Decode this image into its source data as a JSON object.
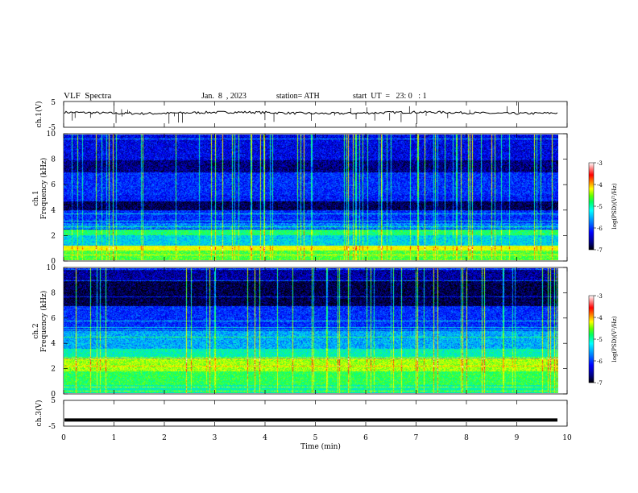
{
  "header": {
    "title": "VLF  Spectra",
    "date": "Jan.  8  , 2023",
    "station": "station= ATH",
    "start": "start  UT  =   23: 0   : 1"
  },
  "chart_data": [
    {
      "id": "ch1-waveform",
      "type": "line",
      "ylabel": "ch.1(V)",
      "ylim": [
        -5,
        5
      ],
      "yticks": [
        "5",
        "-5"
      ],
      "xlim": [
        0,
        10
      ],
      "series": [
        {
          "shape": "noisy baseline near 0 V with spikes",
          "level": 0.6
        }
      ]
    },
    {
      "id": "ch1-spectrogram",
      "type": "heatmap",
      "ylabel_line1": "ch.1",
      "ylabel_line2": "Frequency  (kHz)",
      "ylim": [
        0,
        10
      ],
      "yticks": [
        "0",
        "2",
        "4",
        "6",
        "8",
        "10"
      ],
      "xlim": [
        0,
        9.8
      ],
      "colorbar": {
        "label": "log(PSD)(V²/Hz)",
        "range": [
          -7,
          -3
        ],
        "ticks": [
          "-3",
          "-4",
          "-5",
          "-6",
          "-7"
        ]
      }
    },
    {
      "id": "ch2-spectrogram",
      "type": "heatmap",
      "ylabel_line1": "ch.2",
      "ylabel_line2": "Frequency  (kHz)",
      "ylim": [
        0,
        10
      ],
      "yticks": [
        "0",
        "2",
        "4",
        "6",
        "8",
        "10"
      ],
      "xlim": [
        0,
        9.8
      ],
      "colorbar": {
        "label": "log(PSD)(V²/Hz)",
        "range": [
          -7,
          -3
        ],
        "ticks": [
          "-3",
          "-4",
          "-5",
          "-6",
          "-7"
        ]
      }
    },
    {
      "id": "ch3-waveform",
      "type": "line",
      "ylabel": "ch.3(V)",
      "ylim": [
        -5,
        5
      ],
      "yticks": [
        "5",
        "-5"
      ],
      "xlim": [
        0,
        10
      ],
      "series": [
        {
          "shape": "flat thick line",
          "level": -2.6
        }
      ]
    }
  ],
  "xaxis": {
    "label": "Time  (min)",
    "ticks": [
      "0",
      "1",
      "2",
      "3",
      "4",
      "5",
      "6",
      "7",
      "8",
      "9",
      "10"
    ]
  },
  "colors": {
    "colormap": [
      "#000000",
      "#00007f",
      "#0000ff",
      "#0060ff",
      "#00c8ff",
      "#00ffa0",
      "#30ff30",
      "#c8ff00",
      "#ffff00",
      "#ff9900",
      "#ff0000",
      "#ffffff"
    ]
  }
}
